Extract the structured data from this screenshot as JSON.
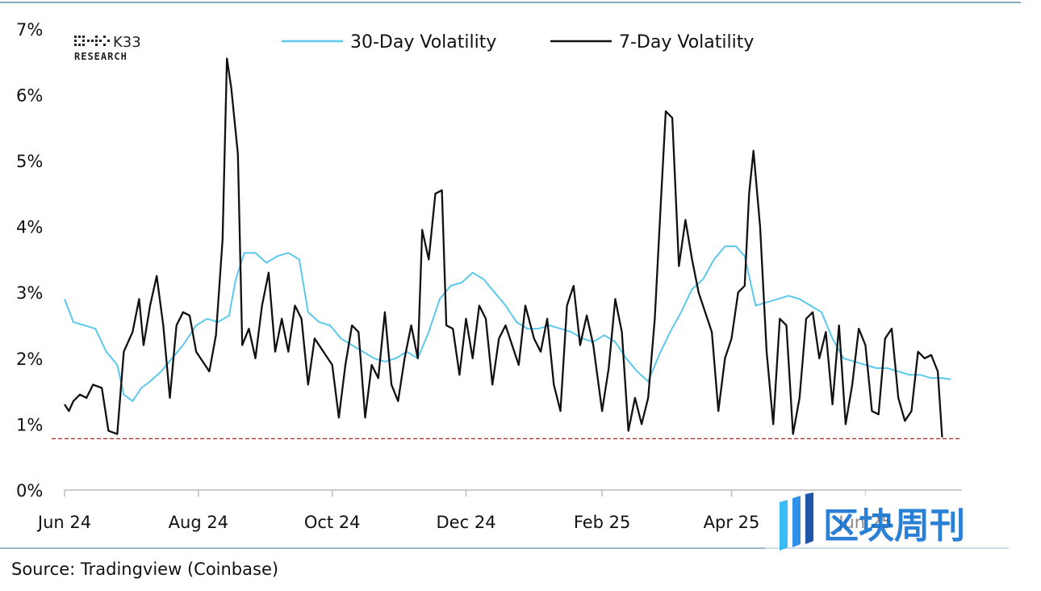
{
  "chart_data": {
    "type": "line",
    "y_axis": {
      "min": 0,
      "max": 7,
      "unit": "%",
      "ticks": [
        "0%",
        "1%",
        "2%",
        "3%",
        "4%",
        "5%",
        "6%",
        "7%"
      ]
    },
    "x_ticks": [
      "Jun 24",
      "Aug 24",
      "Oct 24",
      "Dec 24",
      "Feb 25",
      "Apr 25",
      "Jun 25"
    ],
    "x_range": [
      "2024-06-01",
      "2025-07-15"
    ],
    "series": [
      {
        "name": "30-Day Volatility",
        "color": "#5bc8ec",
        "points": [
          [
            "2024-06-01",
            2.9
          ],
          [
            "2024-06-05",
            2.55
          ],
          [
            "2024-06-10",
            2.5
          ],
          [
            "2024-06-15",
            2.45
          ],
          [
            "2024-06-20",
            2.1
          ],
          [
            "2024-06-25",
            1.9
          ],
          [
            "2024-06-28",
            1.45
          ],
          [
            "2024-07-02",
            1.35
          ],
          [
            "2024-07-06",
            1.55
          ],
          [
            "2024-07-10",
            1.65
          ],
          [
            "2024-07-15",
            1.8
          ],
          [
            "2024-07-20",
            2.0
          ],
          [
            "2024-07-25",
            2.2
          ],
          [
            "2024-07-31",
            2.5
          ],
          [
            "2024-08-05",
            2.6
          ],
          [
            "2024-08-10",
            2.55
          ],
          [
            "2024-08-15",
            2.65
          ],
          [
            "2024-08-18",
            3.2
          ],
          [
            "2024-08-22",
            3.6
          ],
          [
            "2024-08-27",
            3.6
          ],
          [
            "2024-09-01",
            3.45
          ],
          [
            "2024-09-06",
            3.55
          ],
          [
            "2024-09-11",
            3.6
          ],
          [
            "2024-09-16",
            3.5
          ],
          [
            "2024-09-20",
            2.7
          ],
          [
            "2024-09-25",
            2.55
          ],
          [
            "2024-09-30",
            2.5
          ],
          [
            "2024-10-05",
            2.3
          ],
          [
            "2024-10-10",
            2.2
          ],
          [
            "2024-10-15",
            2.1
          ],
          [
            "2024-10-20",
            2.0
          ],
          [
            "2024-10-25",
            1.95
          ],
          [
            "2024-10-30",
            2.0
          ],
          [
            "2024-11-04",
            2.1
          ],
          [
            "2024-11-09",
            2.0
          ],
          [
            "2024-11-14",
            2.4
          ],
          [
            "2024-11-19",
            2.9
          ],
          [
            "2024-11-24",
            3.1
          ],
          [
            "2024-11-29",
            3.15
          ],
          [
            "2024-12-04",
            3.3
          ],
          [
            "2024-12-09",
            3.2
          ],
          [
            "2024-12-14",
            3.0
          ],
          [
            "2024-12-19",
            2.8
          ],
          [
            "2024-12-24",
            2.55
          ],
          [
            "2024-12-29",
            2.45
          ],
          [
            "2025-01-03",
            2.45
          ],
          [
            "2025-01-08",
            2.5
          ],
          [
            "2025-01-13",
            2.45
          ],
          [
            "2025-01-18",
            2.4
          ],
          [
            "2025-01-23",
            2.3
          ],
          [
            "2025-01-28",
            2.25
          ],
          [
            "2025-02-02",
            2.35
          ],
          [
            "2025-02-07",
            2.25
          ],
          [
            "2025-02-12",
            2.0
          ],
          [
            "2025-02-17",
            1.8
          ],
          [
            "2025-02-22",
            1.65
          ],
          [
            "2025-02-27",
            2.05
          ],
          [
            "2025-03-04",
            2.4
          ],
          [
            "2025-03-09",
            2.7
          ],
          [
            "2025-03-14",
            3.05
          ],
          [
            "2025-03-19",
            3.2
          ],
          [
            "2025-03-24",
            3.5
          ],
          [
            "2025-03-29",
            3.7
          ],
          [
            "2025-04-03",
            3.7
          ],
          [
            "2025-04-07",
            3.55
          ],
          [
            "2025-04-12",
            2.8
          ],
          [
            "2025-04-17",
            2.85
          ],
          [
            "2025-04-22",
            2.9
          ],
          [
            "2025-04-27",
            2.95
          ],
          [
            "2025-05-02",
            2.9
          ],
          [
            "2025-05-07",
            2.8
          ],
          [
            "2025-05-12",
            2.7
          ],
          [
            "2025-05-17",
            2.3
          ],
          [
            "2025-05-22",
            2.0
          ],
          [
            "2025-05-27",
            1.95
          ],
          [
            "2025-06-01",
            1.9
          ],
          [
            "2025-06-06",
            1.85
          ],
          [
            "2025-06-11",
            1.85
          ],
          [
            "2025-06-16",
            1.8
          ],
          [
            "2025-06-21",
            1.75
          ],
          [
            "2025-06-26",
            1.75
          ],
          [
            "2025-07-01",
            1.7
          ],
          [
            "2025-07-06",
            1.7
          ],
          [
            "2025-07-10",
            1.68
          ]
        ]
      },
      {
        "name": "7-Day Volatility",
        "color": "#111111",
        "points": [
          [
            "2024-06-01",
            1.3
          ],
          [
            "2024-06-03",
            1.2
          ],
          [
            "2024-06-05",
            1.35
          ],
          [
            "2024-06-08",
            1.45
          ],
          [
            "2024-06-11",
            1.4
          ],
          [
            "2024-06-14",
            1.6
          ],
          [
            "2024-06-18",
            1.55
          ],
          [
            "2024-06-21",
            0.9
          ],
          [
            "2024-06-25",
            0.85
          ],
          [
            "2024-06-28",
            2.1
          ],
          [
            "2024-07-02",
            2.4
          ],
          [
            "2024-07-05",
            2.9
          ],
          [
            "2024-07-07",
            2.2
          ],
          [
            "2024-07-10",
            2.8
          ],
          [
            "2024-07-13",
            3.25
          ],
          [
            "2024-07-16",
            2.5
          ],
          [
            "2024-07-19",
            1.4
          ],
          [
            "2024-07-22",
            2.5
          ],
          [
            "2024-07-25",
            2.7
          ],
          [
            "2024-07-28",
            2.65
          ],
          [
            "2024-07-31",
            2.1
          ],
          [
            "2024-08-03",
            1.95
          ],
          [
            "2024-08-06",
            1.8
          ],
          [
            "2024-08-09",
            2.35
          ],
          [
            "2024-08-12",
            3.8
          ],
          [
            "2024-08-14",
            6.55
          ],
          [
            "2024-08-16",
            6.1
          ],
          [
            "2024-08-19",
            5.1
          ],
          [
            "2024-08-21",
            2.2
          ],
          [
            "2024-08-24",
            2.45
          ],
          [
            "2024-08-27",
            2.0
          ],
          [
            "2024-08-30",
            2.8
          ],
          [
            "2024-09-02",
            3.3
          ],
          [
            "2024-09-05",
            2.1
          ],
          [
            "2024-09-08",
            2.6
          ],
          [
            "2024-09-11",
            2.1
          ],
          [
            "2024-09-14",
            2.8
          ],
          [
            "2024-09-17",
            2.6
          ],
          [
            "2024-09-20",
            1.6
          ],
          [
            "2024-09-23",
            2.3
          ],
          [
            "2024-09-27",
            2.1
          ],
          [
            "2024-10-01",
            1.9
          ],
          [
            "2024-10-04",
            1.1
          ],
          [
            "2024-10-07",
            1.9
          ],
          [
            "2024-10-10",
            2.5
          ],
          [
            "2024-10-13",
            2.4
          ],
          [
            "2024-10-16",
            1.1
          ],
          [
            "2024-10-19",
            1.9
          ],
          [
            "2024-10-22",
            1.7
          ],
          [
            "2024-10-25",
            2.7
          ],
          [
            "2024-10-28",
            1.6
          ],
          [
            "2024-10-31",
            1.35
          ],
          [
            "2024-11-03",
            2.0
          ],
          [
            "2024-11-06",
            2.5
          ],
          [
            "2024-11-09",
            2.0
          ],
          [
            "2024-11-11",
            3.95
          ],
          [
            "2024-11-14",
            3.5
          ],
          [
            "2024-11-17",
            4.5
          ],
          [
            "2024-11-20",
            4.55
          ],
          [
            "2024-11-22",
            2.5
          ],
          [
            "2024-11-25",
            2.45
          ],
          [
            "2024-11-28",
            1.75
          ],
          [
            "2024-12-01",
            2.6
          ],
          [
            "2024-12-04",
            2.0
          ],
          [
            "2024-12-07",
            2.8
          ],
          [
            "2024-12-10",
            2.6
          ],
          [
            "2024-12-13",
            1.6
          ],
          [
            "2024-12-16",
            2.3
          ],
          [
            "2024-12-19",
            2.5
          ],
          [
            "2024-12-22",
            2.2
          ],
          [
            "2024-12-25",
            1.9
          ],
          [
            "2024-12-28",
            2.8
          ],
          [
            "2025-01-01",
            2.3
          ],
          [
            "2025-01-04",
            2.1
          ],
          [
            "2025-01-07",
            2.6
          ],
          [
            "2025-01-10",
            1.6
          ],
          [
            "2025-01-13",
            1.2
          ],
          [
            "2025-01-16",
            2.8
          ],
          [
            "2025-01-19",
            3.1
          ],
          [
            "2025-01-22",
            2.2
          ],
          [
            "2025-01-25",
            2.65
          ],
          [
            "2025-01-28",
            2.2
          ],
          [
            "2025-02-01",
            1.2
          ],
          [
            "2025-02-04",
            1.85
          ],
          [
            "2025-02-07",
            2.9
          ],
          [
            "2025-02-10",
            2.4
          ],
          [
            "2025-02-13",
            0.9
          ],
          [
            "2025-02-16",
            1.4
          ],
          [
            "2025-02-19",
            1.0
          ],
          [
            "2025-02-22",
            1.4
          ],
          [
            "2025-02-25",
            2.6
          ],
          [
            "2025-02-28",
            4.5
          ],
          [
            "2025-03-02",
            5.75
          ],
          [
            "2025-03-05",
            5.65
          ],
          [
            "2025-03-08",
            3.4
          ],
          [
            "2025-03-11",
            4.1
          ],
          [
            "2025-03-14",
            3.5
          ],
          [
            "2025-03-17",
            3.0
          ],
          [
            "2025-03-20",
            2.7
          ],
          [
            "2025-03-23",
            2.4
          ],
          [
            "2025-03-26",
            1.2
          ],
          [
            "2025-03-29",
            2.0
          ],
          [
            "2025-04-01",
            2.3
          ],
          [
            "2025-04-04",
            3.0
          ],
          [
            "2025-04-07",
            3.1
          ],
          [
            "2025-04-09",
            4.5
          ],
          [
            "2025-04-11",
            5.15
          ],
          [
            "2025-04-14",
            4.0
          ],
          [
            "2025-04-17",
            2.1
          ],
          [
            "2025-04-20",
            1.0
          ],
          [
            "2025-04-23",
            2.6
          ],
          [
            "2025-04-26",
            2.5
          ],
          [
            "2025-04-29",
            0.85
          ],
          [
            "2025-05-02",
            1.4
          ],
          [
            "2025-05-05",
            2.6
          ],
          [
            "2025-05-08",
            2.7
          ],
          [
            "2025-05-11",
            2.0
          ],
          [
            "2025-05-14",
            2.4
          ],
          [
            "2025-05-17",
            1.3
          ],
          [
            "2025-05-20",
            2.5
          ],
          [
            "2025-05-23",
            1.0
          ],
          [
            "2025-05-26",
            1.6
          ],
          [
            "2025-05-29",
            2.45
          ],
          [
            "2025-06-01",
            2.2
          ],
          [
            "2025-06-04",
            1.2
          ],
          [
            "2025-06-07",
            1.15
          ],
          [
            "2025-06-10",
            2.3
          ],
          [
            "2025-06-13",
            2.45
          ],
          [
            "2025-06-16",
            1.4
          ],
          [
            "2025-06-19",
            1.05
          ],
          [
            "2025-06-22",
            1.2
          ],
          [
            "2025-06-25",
            2.1
          ],
          [
            "2025-06-28",
            2.0
          ],
          [
            "2025-07-01",
            2.05
          ],
          [
            "2025-07-04",
            1.8
          ],
          [
            "2025-07-06",
            0.8
          ]
        ]
      }
    ],
    "reference_line": {
      "value": 0.78,
      "color": "#9b2a2a",
      "style": "dashed"
    },
    "legend_placement": "top-center",
    "grid": false
  },
  "logo": {
    "main": "K33",
    "sub": "RESEARCH"
  },
  "source": "Source: Tradingview (Coinbase)",
  "watermark": "区块周刊"
}
